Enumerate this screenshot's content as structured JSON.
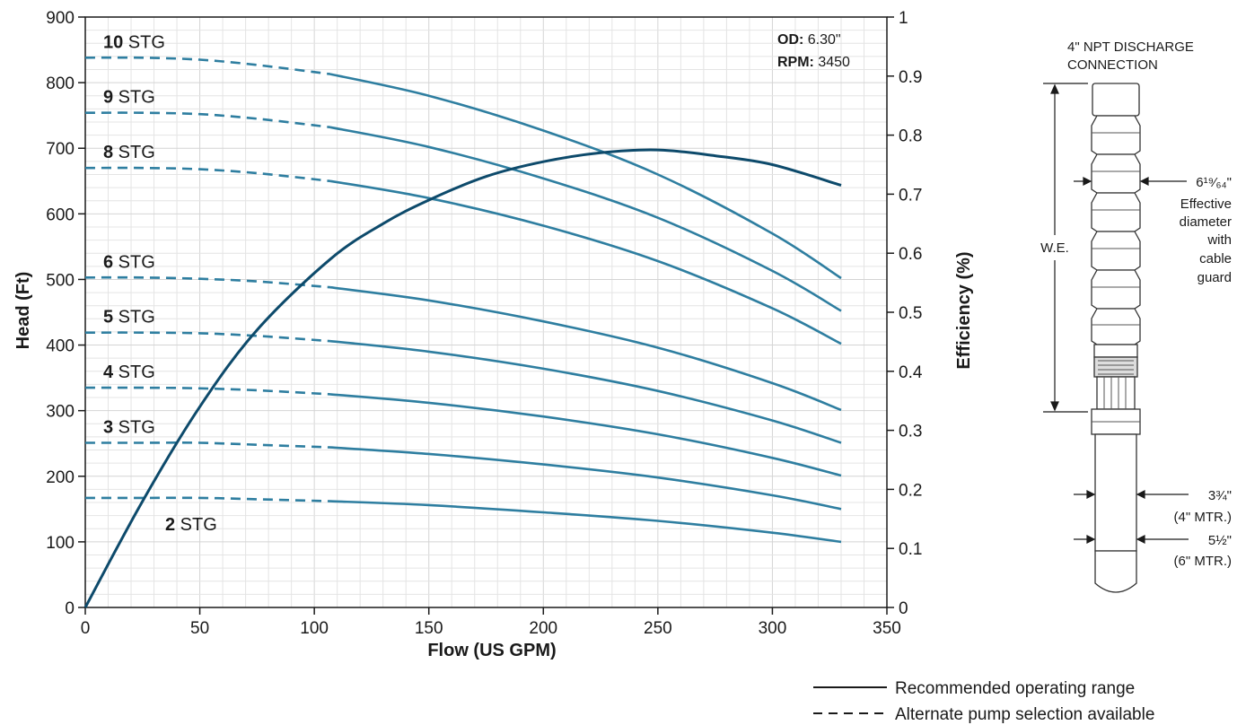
{
  "chart_data": {
    "type": "line",
    "xlabel": "Flow (US GPM)",
    "ylabel": "Head (Ft)",
    "y2label": "Efficiency (%)",
    "xlim": [
      0,
      350
    ],
    "ylim": [
      0,
      900
    ],
    "y2lim": [
      0,
      1
    ],
    "xticks": [
      "0",
      "50",
      "100",
      "150",
      "200",
      "250",
      "300",
      "350"
    ],
    "yticks": [
      "0",
      "100",
      "200",
      "300",
      "400",
      "500",
      "600",
      "700",
      "800",
      "900"
    ],
    "y2ticks": [
      "0",
      "0.1",
      "0.2",
      "0.3",
      "0.4",
      "0.5",
      "0.6",
      "0.7",
      "0.8",
      "0.9",
      "1"
    ],
    "grid": true,
    "colors": {
      "head": "#2e7ea0",
      "efficiency": "#0d4a6b",
      "grid": "#e4e4e4"
    },
    "recommended_range_start": 107,
    "specs": {
      "od_label": "OD:",
      "od_value": "6.30\"",
      "rpm_label": "RPM:",
      "rpm_value": "3450"
    },
    "series": [
      {
        "stages": "10",
        "suffix": "STG",
        "x": [
          0,
          25,
          50,
          75,
          107,
          150,
          200,
          250,
          300,
          330
        ],
        "y": [
          838,
          838,
          835,
          827,
          813,
          780,
          727,
          660,
          570,
          502
        ]
      },
      {
        "stages": "9",
        "suffix": "STG",
        "x": [
          0,
          25,
          50,
          75,
          107,
          150,
          200,
          250,
          300,
          330
        ],
        "y": [
          754,
          754,
          752,
          745,
          732,
          702,
          654,
          594,
          513,
          452
        ]
      },
      {
        "stages": "8",
        "suffix": "STG",
        "x": [
          0,
          25,
          50,
          75,
          107,
          150,
          200,
          250,
          300,
          330
        ],
        "y": [
          670,
          670,
          668,
          662,
          650,
          624,
          582,
          528,
          456,
          402
        ]
      },
      {
        "stages": "6",
        "suffix": "STG",
        "x": [
          0,
          25,
          50,
          75,
          107,
          150,
          200,
          250,
          300,
          330
        ],
        "y": [
          503,
          503,
          501,
          497,
          488,
          468,
          436,
          396,
          342,
          301
        ]
      },
      {
        "stages": "5",
        "suffix": "STG",
        "x": [
          0,
          25,
          50,
          75,
          107,
          150,
          200,
          250,
          300,
          330
        ],
        "y": [
          419,
          419,
          418,
          414,
          406,
          390,
          364,
          330,
          285,
          251
        ]
      },
      {
        "stages": "4",
        "suffix": "STG",
        "x": [
          0,
          25,
          50,
          75,
          107,
          150,
          200,
          250,
          300,
          330
        ],
        "y": [
          335,
          335,
          334,
          331,
          325,
          312,
          291,
          264,
          228,
          201
        ]
      },
      {
        "stages": "3",
        "suffix": "STG",
        "x": [
          0,
          25,
          50,
          75,
          107,
          150,
          200,
          250,
          300,
          330
        ],
        "y": [
          251,
          251,
          251,
          248,
          244,
          234,
          218,
          198,
          171,
          150
        ]
      },
      {
        "stages": "2",
        "suffix": "STG",
        "x": [
          0,
          25,
          50,
          75,
          107,
          150,
          200,
          250,
          300,
          330
        ],
        "y": [
          167,
          167,
          167,
          165,
          162,
          156,
          145,
          132,
          114,
          100
        ]
      }
    ],
    "efficiency": {
      "x": [
        0,
        25,
        50,
        75,
        107,
        130,
        150,
        175,
        200,
        225,
        250,
        275,
        300,
        330
      ],
      "y": [
        0,
        0.18,
        0.34,
        0.47,
        0.59,
        0.65,
        0.69,
        0.73,
        0.755,
        0.77,
        0.775,
        0.765,
        0.75,
        0.715
      ]
    }
  },
  "pump": {
    "discharge_line1": "4\" NPT DISCHARGE",
    "discharge_line2": "CONNECTION",
    "we_label": "W.E.",
    "diameter_value": "6¹⁹⁄₆₄\"",
    "diameter_desc": [
      "Effective",
      "diameter",
      "with",
      "cable",
      "guard"
    ],
    "motor4_value": "3¾\"",
    "motor4_label": "(4\" MTR.)",
    "motor6_value": "5½\"",
    "motor6_label": "(6\" MTR.)"
  },
  "legend": {
    "solid_label": "Recommended operating range",
    "dashed_label": "Alternate pump selection available"
  }
}
